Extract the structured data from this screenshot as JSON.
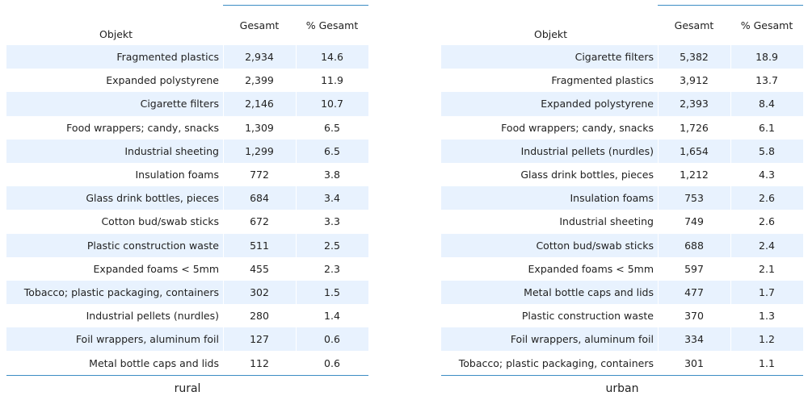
{
  "headers": {
    "object": "Objekt",
    "total": "Gesamt",
    "percent": "% Gesamt"
  },
  "tables": [
    {
      "caption": "rural",
      "rows": [
        {
          "object": "Fragmented plastics",
          "total": "2,934",
          "percent": "14.6"
        },
        {
          "object": "Expanded polystyrene",
          "total": "2,399",
          "percent": "11.9"
        },
        {
          "object": "Cigarette filters",
          "total": "2,146",
          "percent": "10.7"
        },
        {
          "object": "Food wrappers; candy, snacks",
          "total": "1,309",
          "percent": "6.5"
        },
        {
          "object": "Industrial sheeting",
          "total": "1,299",
          "percent": "6.5"
        },
        {
          "object": "Insulation foams",
          "total": "772",
          "percent": "3.8"
        },
        {
          "object": "Glass drink bottles, pieces",
          "total": "684",
          "percent": "3.4"
        },
        {
          "object": "Cotton bud/swab sticks",
          "total": "672",
          "percent": "3.3"
        },
        {
          "object": "Plastic construction waste",
          "total": "511",
          "percent": "2.5"
        },
        {
          "object": "Expanded foams < 5mm",
          "total": "455",
          "percent": "2.3"
        },
        {
          "object": "Tobacco; plastic packaging, containers",
          "total": "302",
          "percent": "1.5"
        },
        {
          "object": "Industrial pellets (nurdles)",
          "total": "280",
          "percent": "1.4"
        },
        {
          "object": "Foil wrappers, aluminum foil",
          "total": "127",
          "percent": "0.6"
        },
        {
          "object": "Metal bottle caps and lids",
          "total": "112",
          "percent": "0.6"
        }
      ]
    },
    {
      "caption": "urban",
      "rows": [
        {
          "object": "Cigarette filters",
          "total": "5,382",
          "percent": "18.9"
        },
        {
          "object": "Fragmented plastics",
          "total": "3,912",
          "percent": "13.7"
        },
        {
          "object": "Expanded polystyrene",
          "total": "2,393",
          "percent": "8.4"
        },
        {
          "object": "Food wrappers; candy, snacks",
          "total": "1,726",
          "percent": "6.1"
        },
        {
          "object": "Industrial pellets (nurdles)",
          "total": "1,654",
          "percent": "5.8"
        },
        {
          "object": "Glass drink bottles, pieces",
          "total": "1,212",
          "percent": "4.3"
        },
        {
          "object": "Insulation foams",
          "total": "753",
          "percent": "2.6"
        },
        {
          "object": "Industrial sheeting",
          "total": "749",
          "percent": "2.6"
        },
        {
          "object": "Cotton bud/swab sticks",
          "total": "688",
          "percent": "2.4"
        },
        {
          "object": "Expanded foams < 5mm",
          "total": "597",
          "percent": "2.1"
        },
        {
          "object": "Metal bottle caps and lids",
          "total": "477",
          "percent": "1.7"
        },
        {
          "object": "Plastic construction waste",
          "total": "370",
          "percent": "1.3"
        },
        {
          "object": "Foil wrappers, aluminum foil",
          "total": "334",
          "percent": "1.2"
        },
        {
          "object": "Tobacco; plastic packaging, containers",
          "total": "301",
          "percent": "1.1"
        }
      ]
    }
  ],
  "colors": {
    "row_stripe": "#e8f2fe",
    "rule": "#3c8dc4",
    "text": "#222222"
  }
}
